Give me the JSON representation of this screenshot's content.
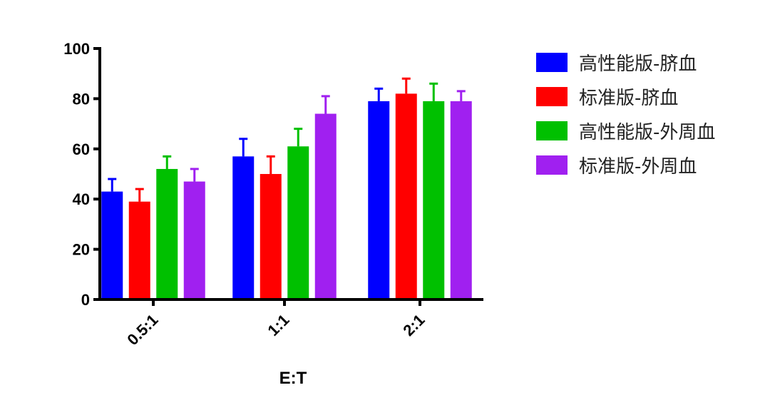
{
  "chart_data": {
    "type": "bar",
    "categories": [
      "0.5:1",
      "1:1",
      "2:1"
    ],
    "xlabel": "E:T",
    "ylabel": "",
    "ylim": [
      0,
      100
    ],
    "yticks": [
      0,
      20,
      40,
      60,
      80,
      100
    ],
    "grid": false,
    "legend_position": "right",
    "series": [
      {
        "name": "高性能版-脐血",
        "color": "#0000ff",
        "values": [
          43,
          57,
          79
        ],
        "errors": [
          5,
          7,
          5
        ]
      },
      {
        "name": "标准版-脐血",
        "color": "#ff0000",
        "values": [
          39,
          50,
          82
        ],
        "errors": [
          5,
          7,
          6
        ]
      },
      {
        "name": "高性能版-外周血",
        "color": "#00c000",
        "values": [
          52,
          61,
          79
        ],
        "errors": [
          5,
          7,
          7
        ]
      },
      {
        "name": "标准版-外周血",
        "color": "#a020f0",
        "values": [
          47,
          74,
          79
        ],
        "errors": [
          5,
          7,
          4
        ]
      }
    ]
  }
}
